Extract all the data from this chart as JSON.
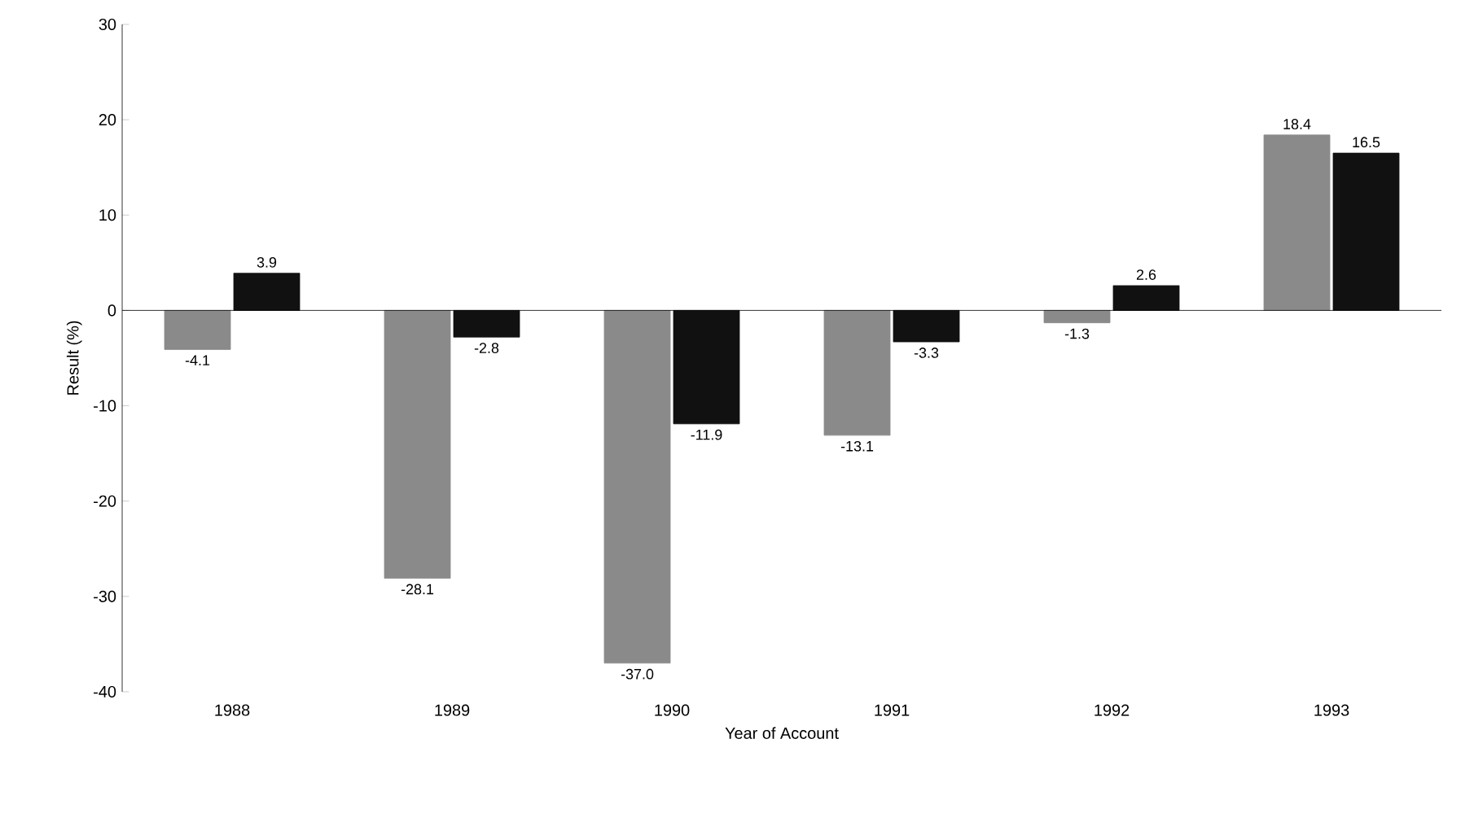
{
  "chart_data": {
    "type": "bar",
    "xlabel": "Year of Account",
    "ylabel": "Result (%)",
    "categories": [
      "1988",
      "1989",
      "1990",
      "1991",
      "1992",
      "1993"
    ],
    "series": [
      {
        "color": "#8a8a8a",
        "values": [
          -4.1,
          -28.1,
          -37.0,
          -13.1,
          -1.3,
          18.4
        ],
        "value_labels": [
          "-4.1",
          "-28.1",
          "-37.0",
          "-13.1",
          "-1.3",
          "18.4"
        ]
      },
      {
        "color": "#111111",
        "values": [
          3.9,
          -2.8,
          -11.9,
          -3.3,
          2.6,
          16.5
        ],
        "value_labels": [
          "3.9",
          "-2.8",
          "-11.9",
          "-3.3",
          "2.6",
          "16.5"
        ]
      }
    ],
    "ylim": [
      -40,
      30
    ],
    "yticks": [
      -40,
      -30,
      -20,
      -10,
      0,
      10,
      20,
      30
    ]
  }
}
